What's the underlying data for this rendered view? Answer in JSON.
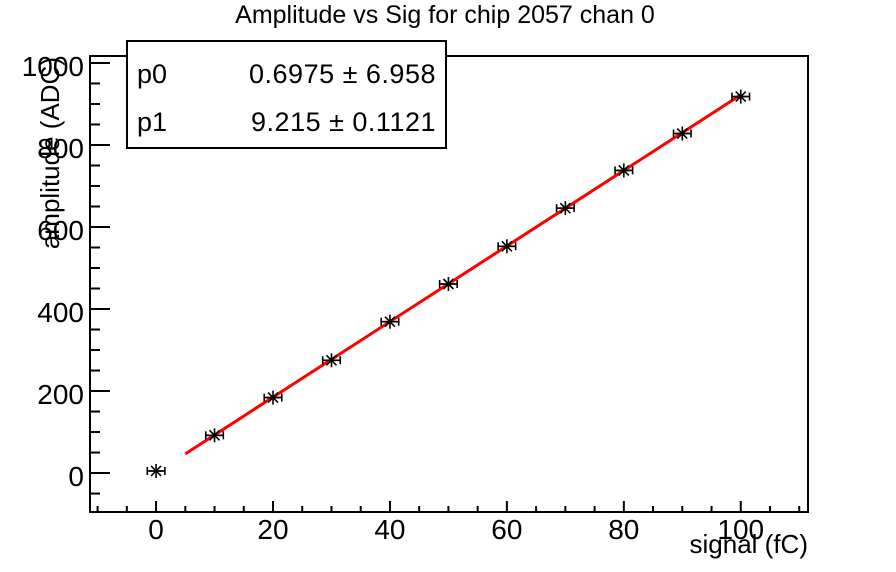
{
  "chart_data": {
    "type": "scatter",
    "title": "Amplitude vs Sig for chip 2057 chan 0",
    "xlabel": "signal (fC)",
    "ylabel": "amplitude (ADC)",
    "x": [
      0,
      10,
      20,
      30,
      40,
      50,
      60,
      70,
      80,
      90,
      100
    ],
    "y": [
      5,
      92,
      184,
      275,
      369,
      461,
      553,
      646,
      738,
      828,
      918
    ],
    "x_error": 1.5,
    "marker": "asterisk",
    "marker_color": "#000000",
    "fit_line": {
      "p0": 0.6975,
      "p1": 9.215,
      "x_range": [
        5,
        100
      ],
      "color": "#ff0000",
      "width": 3
    },
    "xlim": [
      -11.3,
      111.5
    ],
    "ylim": [
      -95,
      1017
    ],
    "x_major_ticks": [
      0,
      20,
      40,
      60,
      80,
      100
    ],
    "x_minor_step": 5,
    "y_major_ticks": [
      0,
      200,
      400,
      600,
      800,
      1000
    ],
    "y_minor_step": 50,
    "grid": false,
    "frame_color": "#000000",
    "background": "#ffffff"
  },
  "stats_box": {
    "rows": [
      {
        "label": "p0",
        "value": "0.6975 ± 6.958"
      },
      {
        "label": "p1",
        "value": "9.215 ± 0.1121"
      }
    ]
  }
}
